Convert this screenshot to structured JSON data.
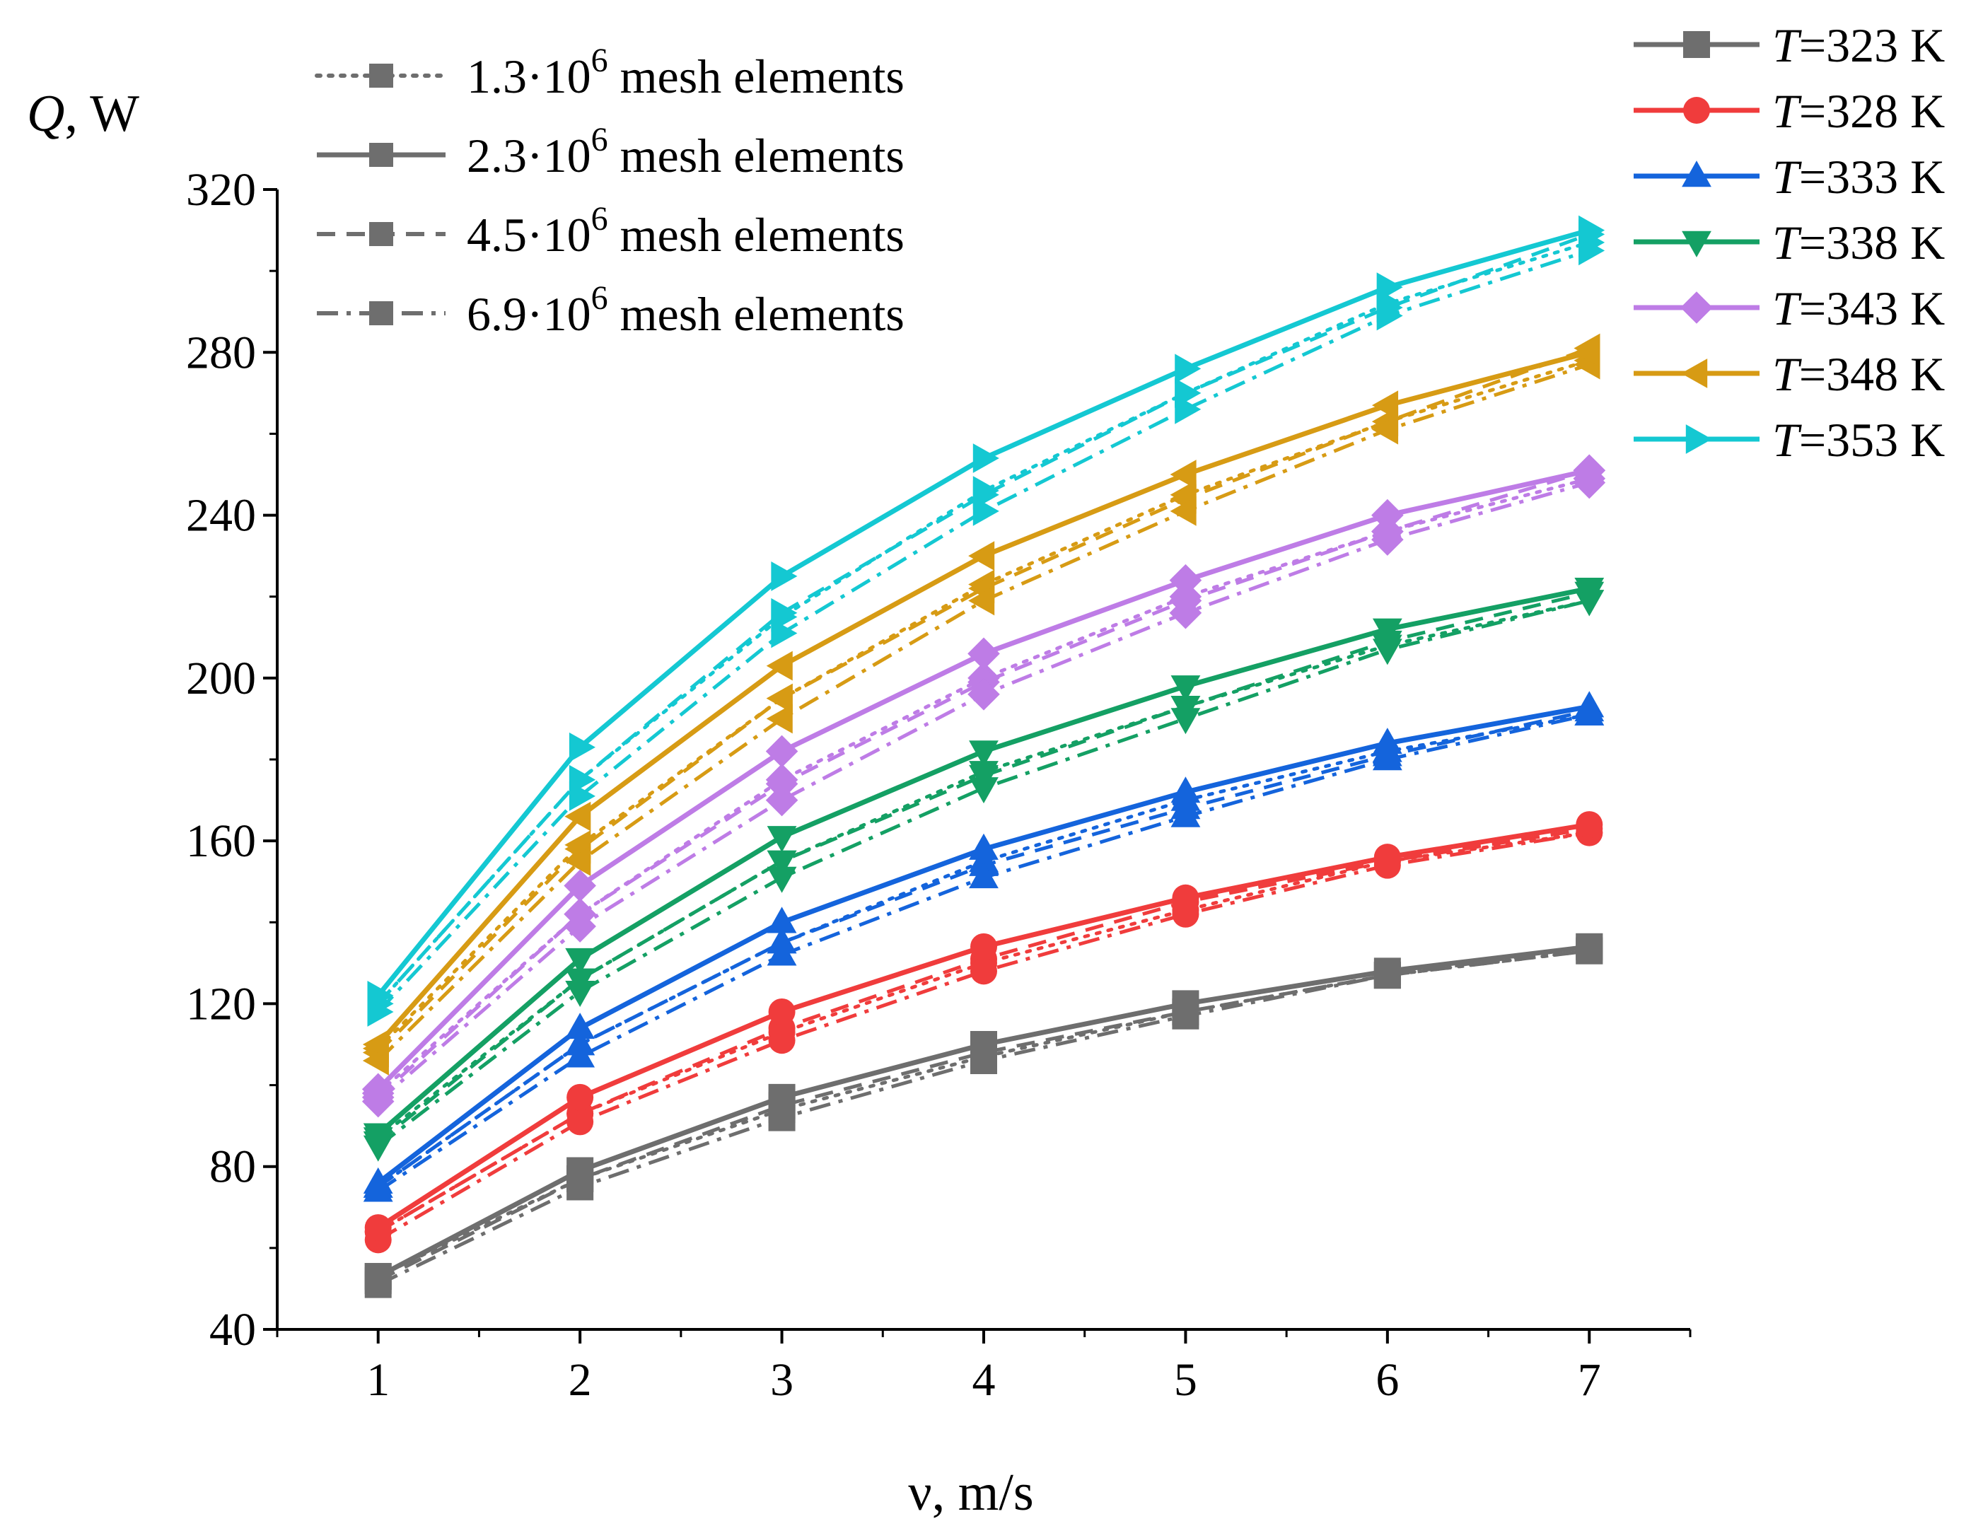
{
  "chart_data": {
    "type": "line",
    "title": "",
    "xlabel": "ν, m/s",
    "ylabel_symbol": "Q",
    "ylabel_unit": ", W",
    "x": [
      1,
      2,
      3,
      4,
      5,
      6,
      7
    ],
    "xlim": [
      0.5,
      7.5
    ],
    "ylim": [
      40,
      320
    ],
    "x_ticks": [
      "1",
      "2",
      "3",
      "4",
      "5",
      "6",
      "7"
    ],
    "y_ticks": [
      "40",
      "80",
      "120",
      "160",
      "200",
      "240",
      "280",
      "320"
    ],
    "mesh_legend": [
      {
        "base": "1.3·10",
        "exp": "6",
        "suffix": " mesh elements",
        "dash": "dotted"
      },
      {
        "base": "2.3·10",
        "exp": "6",
        "suffix": " mesh elements",
        "dash": "solid"
      },
      {
        "base": "4.5·10",
        "exp": "6",
        "suffix": " mesh elements",
        "dash": "dashed"
      },
      {
        "base": "6.9·10",
        "exp": "6",
        "suffix": " mesh elements",
        "dash": "dash-dot"
      }
    ],
    "temperature_legend": [
      {
        "var": "T",
        "text": "=323 K",
        "color": "#6e6e6e",
        "marker": "square"
      },
      {
        "var": "T",
        "text": "=328 K",
        "color": "#f03c3c",
        "marker": "circle"
      },
      {
        "var": "T",
        "text": "=333 K",
        "color": "#1464dc",
        "marker": "triangle-up"
      },
      {
        "var": "T",
        "text": "=338 K",
        "color": "#14a064",
        "marker": "triangle-down"
      },
      {
        "var": "T",
        "text": "=343 K",
        "color": "#be7ce6",
        "marker": "diamond"
      },
      {
        "var": "T",
        "text": "=348 K",
        "color": "#d79b14",
        "marker": "triangle-left"
      },
      {
        "var": "T",
        "text": "=353 K",
        "color": "#14c8d2",
        "marker": "triangle-right"
      }
    ],
    "series": [
      {
        "name": "T=323 K, 1.3·10^6 mesh elements",
        "temperature": "T=323 K",
        "mesh": "1.3·10^6",
        "dash": "dotted",
        "values": [
          53,
          77,
          94,
          107,
          118,
          127,
          133
        ]
      },
      {
        "name": "T=323 K, 2.3·10^6 mesh elements",
        "temperature": "T=323 K",
        "mesh": "2.3·10^6",
        "dash": "solid",
        "values": [
          53,
          79,
          97,
          110,
          120,
          128,
          134
        ]
      },
      {
        "name": "T=323 K, 4.5·10^6 mesh elements",
        "temperature": "T=323 K",
        "mesh": "4.5·10^6",
        "dash": "dashed",
        "values": [
          52,
          77,
          95,
          108,
          118,
          127,
          134
        ]
      },
      {
        "name": "T=323 K, 6.9·10^6 mesh elements",
        "temperature": "T=323 K",
        "mesh": "6.9·10^6",
        "dash": "dash-dot",
        "values": [
          51,
          75,
          92,
          106,
          117,
          127,
          133
        ]
      },
      {
        "name": "T=328 K, 1.3·10^6 mesh elements",
        "temperature": "T=328 K",
        "mesh": "1.3·10^6",
        "dash": "dotted",
        "values": [
          64,
          93,
          113,
          130,
          143,
          155,
          162
        ]
      },
      {
        "name": "T=328 K, 2.3·10^6 mesh elements",
        "temperature": "T=328 K",
        "mesh": "2.3·10^6",
        "dash": "solid",
        "values": [
          65,
          97,
          118,
          134,
          146,
          156,
          164
        ]
      },
      {
        "name": "T=328 K, 4.5·10^6 mesh elements",
        "temperature": "T=328 K",
        "mesh": "4.5·10^6",
        "dash": "dashed",
        "values": [
          64,
          93,
          114,
          131,
          145,
          155,
          163
        ]
      },
      {
        "name": "T=328 K, 6.9·10^6 mesh elements",
        "temperature": "T=328 K",
        "mesh": "6.9·10^6",
        "dash": "dash-dot",
        "values": [
          62,
          91,
          111,
          128,
          142,
          154,
          162
        ]
      },
      {
        "name": "T=333 K, 1.3·10^6 mesh elements",
        "temperature": "T=333 K",
        "mesh": "1.3·10^6",
        "dash": "dotted",
        "values": [
          75,
          110,
          135,
          155,
          170,
          182,
          191
        ]
      },
      {
        "name": "T=333 K, 2.3·10^6 mesh elements",
        "temperature": "T=333 K",
        "mesh": "2.3·10^6",
        "dash": "solid",
        "values": [
          76,
          114,
          140,
          158,
          172,
          184,
          193
        ]
      },
      {
        "name": "T=333 K, 4.5·10^6 mesh elements",
        "temperature": "T=333 K",
        "mesh": "4.5·10^6",
        "dash": "dashed",
        "values": [
          75,
          110,
          135,
          154,
          168,
          181,
          192
        ]
      },
      {
        "name": "T=333 K, 6.9·10^6 mesh elements",
        "temperature": "T=333 K",
        "mesh": "6.9·10^6",
        "dash": "dash-dot",
        "values": [
          74,
          107,
          132,
          151,
          166,
          180,
          191
        ]
      },
      {
        "name": "T=338 K, 1.3·10^6 mesh elements",
        "temperature": "T=338 K",
        "mesh": "1.3·10^6",
        "dash": "dotted",
        "values": [
          87,
          126,
          155,
          177,
          193,
          208,
          219
        ]
      },
      {
        "name": "T=338 K, 2.3·10^6 mesh elements",
        "temperature": "T=338 K",
        "mesh": "2.3·10^6",
        "dash": "solid",
        "values": [
          88,
          131,
          161,
          182,
          198,
          212,
          222
        ]
      },
      {
        "name": "T=338 K, 4.5·10^6 mesh elements",
        "temperature": "T=338 K",
        "mesh": "4.5·10^6",
        "dash": "dashed",
        "values": [
          86,
          126,
          155,
          176,
          193,
          209,
          221
        ]
      },
      {
        "name": "T=338 K, 6.9·10^6 mesh elements",
        "temperature": "T=338 K",
        "mesh": "6.9·10^6",
        "dash": "dash-dot",
        "values": [
          85,
          123,
          151,
          173,
          190,
          207,
          219
        ]
      },
      {
        "name": "T=343 K, 1.3·10^6 mesh elements",
        "temperature": "T=343 K",
        "mesh": "1.3·10^6",
        "dash": "dotted",
        "values": [
          98,
          142,
          175,
          200,
          220,
          236,
          249
        ]
      },
      {
        "name": "T=343 K, 2.3·10^6 mesh elements",
        "temperature": "T=343 K",
        "mesh": "2.3·10^6",
        "dash": "solid",
        "values": [
          99,
          149,
          182,
          206,
          224,
          240,
          251
        ]
      },
      {
        "name": "T=343 K, 4.5·10^6 mesh elements",
        "temperature": "T=343 K",
        "mesh": "4.5·10^6",
        "dash": "dashed",
        "values": [
          97,
          142,
          174,
          199,
          219,
          236,
          251
        ]
      },
      {
        "name": "T=343 K, 6.9·10^6 mesh elements",
        "temperature": "T=343 K",
        "mesh": "6.9·10^6",
        "dash": "dash-dot",
        "values": [
          96,
          139,
          170,
          196,
          216,
          234,
          248
        ]
      },
      {
        "name": "T=348 K, 1.3·10^6 mesh elements",
        "temperature": "T=348 K",
        "mesh": "1.3·10^6",
        "dash": "dotted",
        "values": [
          109,
          159,
          195,
          223,
          245,
          263,
          278
        ]
      },
      {
        "name": "T=348 K, 2.3·10^6 mesh elements",
        "temperature": "T=348 K",
        "mesh": "2.3·10^6",
        "dash": "solid",
        "values": [
          110,
          166,
          203,
          230,
          250,
          267,
          280
        ]
      },
      {
        "name": "T=348 K, 4.5·10^6 mesh elements",
        "temperature": "T=348 K",
        "mesh": "4.5·10^6",
        "dash": "dashed",
        "values": [
          108,
          158,
          195,
          222,
          244,
          263,
          281
        ]
      },
      {
        "name": "T=348 K, 6.9·10^6 mesh elements",
        "temperature": "T=348 K",
        "mesh": "6.9·10^6",
        "dash": "dash-dot",
        "values": [
          106,
          155,
          190,
          219,
          241,
          261,
          277
        ]
      },
      {
        "name": "T=353 K, 1.3·10^6 mesh elements",
        "temperature": "T=353 K",
        "mesh": "1.3·10^6",
        "dash": "dotted",
        "values": [
          120,
          175,
          215,
          246,
          270,
          292,
          307
        ]
      },
      {
        "name": "T=353 K, 2.3·10^6 mesh elements",
        "temperature": "T=353 K",
        "mesh": "2.3·10^6",
        "dash": "solid",
        "values": [
          122,
          183,
          225,
          254,
          276,
          296,
          310
        ]
      },
      {
        "name": "T=353 K, 4.5·10^6 mesh elements",
        "temperature": "T=353 K",
        "mesh": "4.5·10^6",
        "dash": "dashed",
        "values": [
          120,
          175,
          216,
          245,
          270,
          291,
          309
        ]
      },
      {
        "name": "T=353 K, 6.9·10^6 mesh elements",
        "temperature": "T=353 K",
        "mesh": "6.9·10^6",
        "dash": "dash-dot",
        "values": [
          118,
          171,
          211,
          241,
          266,
          289,
          305
        ]
      }
    ]
  }
}
